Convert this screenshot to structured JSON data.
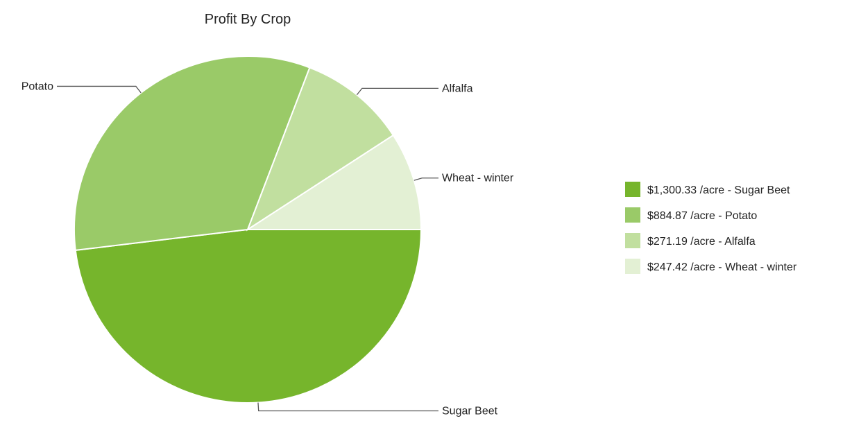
{
  "chart_data": {
    "type": "pie",
    "title": "Profit By Crop",
    "unit_suffix": " /acre",
    "slices": [
      {
        "label": "Sugar Beet",
        "value": 1300.33,
        "value_text": "$1,300.33",
        "color": "#76b52c"
      },
      {
        "label": "Potato",
        "value": 884.87,
        "value_text": "$884.87",
        "color": "#9aca68"
      },
      {
        "label": "Alfalfa",
        "value": 271.19,
        "value_text": "$271.19",
        "color": "#c1df9f"
      },
      {
        "label": "Wheat - winter",
        "value": 247.42,
        "value_text": "$247.42",
        "color": "#e3f0d4"
      }
    ],
    "legend_position": "right",
    "start": "3 o'clock, clockwise",
    "slice_border": "#ffffff"
  },
  "legend": {
    "items": [
      {
        "text": "$1,300.33 /acre - Sugar Beet"
      },
      {
        "text": "$884.87 /acre - Potato"
      },
      {
        "text": "$271.19 /acre - Alfalfa"
      },
      {
        "text": "$247.42 /acre - Wheat - winter"
      }
    ]
  }
}
